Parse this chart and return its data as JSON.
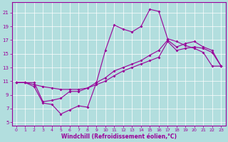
{
  "xlabel": "Windchill (Refroidissement éolien,°C)",
  "bg_color": "#b2dede",
  "grid_color": "#ffffff",
  "line_color": "#990099",
  "xlim": [
    -0.5,
    23.5
  ],
  "ylim": [
    4.5,
    22.5
  ],
  "xticks": [
    0,
    1,
    2,
    3,
    4,
    5,
    6,
    7,
    8,
    9,
    10,
    11,
    12,
    13,
    14,
    15,
    16,
    17,
    18,
    19,
    20,
    21,
    22,
    23
  ],
  "yticks": [
    5,
    7,
    9,
    11,
    13,
    15,
    17,
    19,
    21
  ],
  "line1_x": [
    0,
    1,
    2,
    3,
    4,
    5,
    6,
    7,
    8,
    9,
    10,
    11,
    12,
    13,
    14,
    15,
    16,
    17,
    18,
    19,
    20,
    21,
    22,
    23
  ],
  "line1_y": [
    10.8,
    10.8,
    10.2,
    7.8,
    7.6,
    6.2,
    6.8,
    7.4,
    7.2,
    10.8,
    15.5,
    19.2,
    18.6,
    18.2,
    19.0,
    21.5,
    21.2,
    17.2,
    16.8,
    16.2,
    15.8,
    15.2,
    13.2,
    13.2
  ],
  "line2_x": [
    0,
    1,
    2,
    3,
    4,
    5,
    6,
    7,
    8,
    9,
    10,
    11,
    12,
    13,
    14,
    15,
    16,
    17,
    18,
    19,
    20,
    21,
    22,
    23
  ],
  "line2_y": [
    10.8,
    10.8,
    10.5,
    10.2,
    10.0,
    9.8,
    9.8,
    9.8,
    10.0,
    10.5,
    11.0,
    11.8,
    12.5,
    13.0,
    13.5,
    14.0,
    14.5,
    16.8,
    15.5,
    15.8,
    16.0,
    15.8,
    15.2,
    13.2
  ],
  "line3_x": [
    0,
    1,
    2,
    3,
    4,
    5,
    6,
    7,
    8,
    9,
    10,
    11,
    12,
    13,
    14,
    15,
    16,
    17,
    18,
    19,
    20,
    21,
    22,
    23
  ],
  "line3_y": [
    10.8,
    10.8,
    10.8,
    8.0,
    8.2,
    8.5,
    9.5,
    9.5,
    10.0,
    10.8,
    11.5,
    12.5,
    13.0,
    13.5,
    14.0,
    14.8,
    15.5,
    17.0,
    16.0,
    16.5,
    16.8,
    16.0,
    15.5,
    13.2
  ]
}
